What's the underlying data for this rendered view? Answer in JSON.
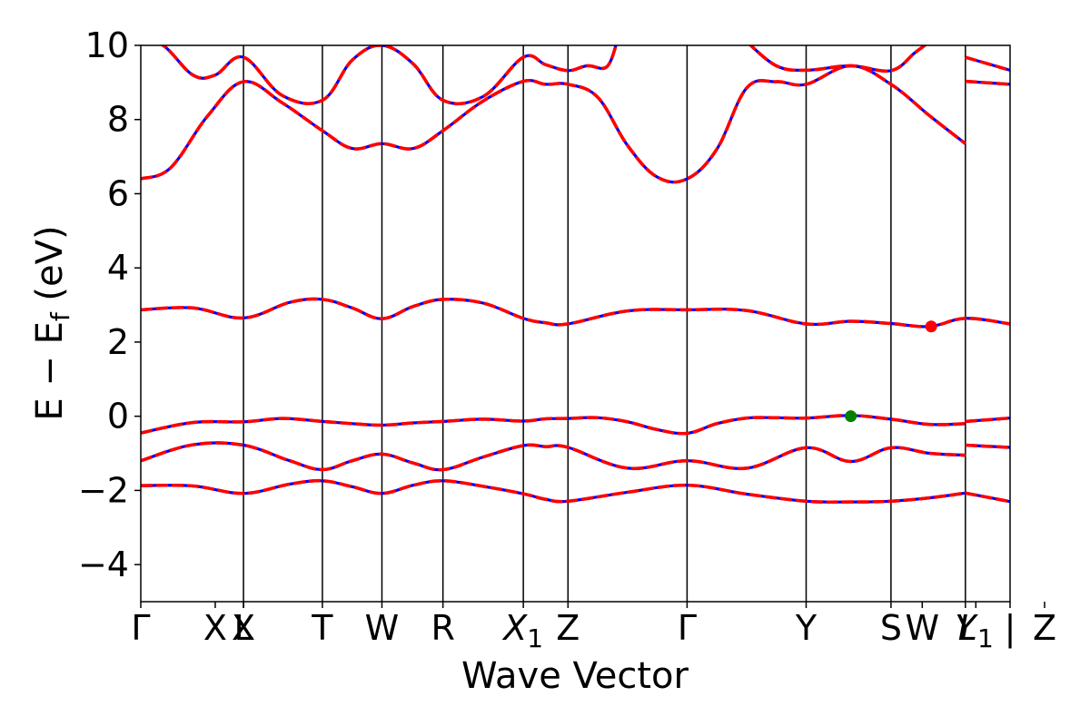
{
  "chart_data": {
    "type": "line",
    "xlabel": "Wave Vector",
    "ylabel": "E − E",
    "ylabel_sub": "f",
    "ylabel_unit": " (eV)",
    "ylim": [
      -5,
      10
    ],
    "yticks": [
      -4,
      -2,
      0,
      2,
      4,
      6,
      8,
      10
    ],
    "ytick_labels": [
      "−4",
      "−2",
      "0",
      "2",
      "4",
      "6",
      "8",
      "10"
    ],
    "xlim": [
      0,
      5.84
    ],
    "high_symmetry_points": [
      {
        "x": 0.0,
        "main": "Γ",
        "sub": ""
      },
      {
        "x": 0.5,
        "main": "X",
        "sub": ""
      },
      {
        "x": 0.69,
        "main": "X",
        "sub": ""
      },
      {
        "x": 0.69,
        "main": "L",
        "sub": ""
      },
      {
        "x": 1.22,
        "main": "T",
        "sub": ""
      },
      {
        "x": 1.62,
        "main": "W",
        "sub": ""
      },
      {
        "x": 2.03,
        "main": "R",
        "sub": ""
      },
      {
        "x": 2.57,
        "main": "X",
        "sub": "1",
        "italic": true
      },
      {
        "x": 2.87,
        "main": "Z",
        "sub": ""
      },
      {
        "x": 3.67,
        "main": "Γ",
        "sub": ""
      },
      {
        "x": 4.47,
        "main": "Y",
        "sub": ""
      },
      {
        "x": 5.04,
        "main": "S",
        "sub": ""
      },
      {
        "x": 5.25,
        "main": "W",
        "sub": ""
      },
      {
        "x": 5.54,
        "main": "Y",
        "sub": "",
        "italic": true
      },
      {
        "x": 5.61,
        "main": "L",
        "sub": "1",
        "italic": true
      },
      {
        "x": 5.84,
        "main": "|",
        "sub": ""
      },
      {
        "x": 6.08,
        "main": "Z",
        "sub": ""
      }
    ],
    "vlines_x": [
      0.69,
      1.22,
      1.62,
      2.03,
      2.57,
      2.87,
      3.67,
      4.47,
      5.04,
      5.54
    ],
    "series": [
      {
        "line_color": "#0000ff",
        "dash_color": "#ff0000",
        "x": [
          0,
          0.35,
          0.69,
          1.0,
          1.22,
          1.42,
          1.62,
          1.83,
          2.03,
          2.3,
          2.57,
          2.72,
          2.87,
          3.27,
          3.67,
          4.07,
          4.47,
          4.77,
          5.04,
          5.3,
          5.54,
          5.54,
          5.84
        ],
        "y": [
          -1.87,
          -1.88,
          -2.08,
          -1.83,
          -1.74,
          -1.9,
          -2.08,
          -1.86,
          -1.74,
          -1.89,
          -2.09,
          -2.24,
          -2.29,
          -2.05,
          -1.86,
          -2.1,
          -2.29,
          -2.31,
          -2.29,
          -2.2,
          -2.07,
          -2.07,
          -2.3
        ]
      },
      {
        "line_color": "#0000ff",
        "dash_color": "#ff0000",
        "x": [
          0,
          0.35,
          0.69,
          1.0,
          1.22,
          1.42,
          1.62,
          1.83,
          2.03,
          2.3,
          2.57,
          2.72,
          2.87,
          3.27,
          3.67,
          4.07,
          4.47,
          4.77,
          5.04,
          5.3,
          5.54
        ],
        "y": [
          -1.2,
          -0.77,
          -0.78,
          -1.2,
          -1.44,
          -1.2,
          -1.02,
          -1.26,
          -1.44,
          -1.1,
          -0.79,
          -0.82,
          -0.84,
          -1.4,
          -1.2,
          -1.4,
          -0.85,
          -1.22,
          -0.85,
          -1.0,
          -1.05
        ]
      },
      {
        "line_color": "#0000ff",
        "dash_color": "#ff0000",
        "x": [
          5.54,
          5.84
        ],
        "y": [
          -0.78,
          -0.84
        ]
      },
      {
        "line_color": "#0000ff",
        "dash_color": "#ff0000",
        "x": [
          0,
          0.35,
          0.69,
          0.95,
          1.22,
          1.42,
          1.62,
          1.83,
          2.03,
          2.3,
          2.57,
          2.72,
          2.87,
          3.07,
          3.27,
          3.47,
          3.67,
          3.87,
          4.07,
          4.27,
          4.47,
          4.77,
          5.04,
          5.3,
          5.54,
          5.54,
          5.84
        ],
        "y": [
          -0.45,
          -0.17,
          -0.15,
          -0.06,
          -0.14,
          -0.2,
          -0.24,
          -0.18,
          -0.14,
          -0.08,
          -0.13,
          -0.07,
          -0.06,
          -0.04,
          -0.15,
          -0.36,
          -0.46,
          -0.2,
          -0.05,
          -0.04,
          -0.05,
          0.02,
          -0.08,
          -0.22,
          -0.2,
          -0.14,
          -0.05
        ]
      },
      {
        "line_color": "#0000ff",
        "dash_color": "#ff0000",
        "x": [
          0,
          0.35,
          0.69,
          1.0,
          1.22,
          1.42,
          1.62,
          1.83,
          2.03,
          2.3,
          2.57,
          2.72,
          2.87,
          3.27,
          3.67,
          4.07,
          4.47,
          4.77,
          5.04,
          5.3,
          5.54,
          5.84
        ],
        "y": [
          2.87,
          2.92,
          2.65,
          3.07,
          3.15,
          2.92,
          2.63,
          2.96,
          3.15,
          3.05,
          2.64,
          2.52,
          2.49,
          2.84,
          2.87,
          2.85,
          2.49,
          2.56,
          2.5,
          2.42,
          2.64,
          2.49
        ]
      },
      {
        "line_color": "#0000ff",
        "dash_color": "#ff0000",
        "x": [
          0,
          0.2,
          0.45,
          0.69,
          0.95,
          1.22,
          1.42,
          1.62,
          1.83,
          2.03,
          2.3,
          2.57,
          2.72,
          2.87,
          3.07,
          3.27,
          3.47,
          3.67,
          3.87,
          4.07,
          4.27,
          4.47,
          4.77,
          5.04,
          5.3,
          5.54
        ],
        "y": [
          6.4,
          6.7,
          8.1,
          9.02,
          8.45,
          7.7,
          7.22,
          7.35,
          7.22,
          7.7,
          8.5,
          9.03,
          8.95,
          8.95,
          8.6,
          7.3,
          6.45,
          6.4,
          7.2,
          8.85,
          9.02,
          8.95,
          9.45,
          8.95,
          8.1,
          7.35
        ]
      },
      {
        "line_color": "#0000ff",
        "dash_color": "#ff0000",
        "x": [
          0,
          0.15,
          0.35,
          0.5,
          0.69,
          0.95,
          1.22,
          1.42,
          1.62,
          1.83,
          2.03,
          2.3,
          2.57,
          2.72,
          2.87,
          3.0,
          3.13,
          3.2
        ],
        "y": [
          10.1,
          10.0,
          9.2,
          9.2,
          9.68,
          8.65,
          8.52,
          9.6,
          10.0,
          9.5,
          8.52,
          8.62,
          9.68,
          9.48,
          9.32,
          9.45,
          9.42,
          10.1
        ]
      },
      {
        "line_color": "#0000ff",
        "dash_color": "#ff0000",
        "x": [
          4.07,
          4.27,
          4.47,
          4.77,
          5.04,
          5.2,
          5.3
        ],
        "y": [
          10.1,
          9.45,
          9.33,
          9.45,
          9.32,
          9.8,
          10.1
        ]
      },
      {
        "line_color": "#0000ff",
        "dash_color": "#ff0000",
        "x": [
          5.54,
          5.84
        ],
        "y": [
          9.68,
          9.33
        ]
      },
      {
        "line_color": "#0000ff",
        "dash_color": "#ff0000",
        "x": [
          5.54,
          5.84
        ],
        "y": [
          9.03,
          8.95
        ]
      }
    ],
    "markers": [
      {
        "x": 4.77,
        "y": 0.0,
        "color": "#008000"
      },
      {
        "x": 5.31,
        "y": 2.42,
        "color": "#ff0000"
      }
    ]
  }
}
